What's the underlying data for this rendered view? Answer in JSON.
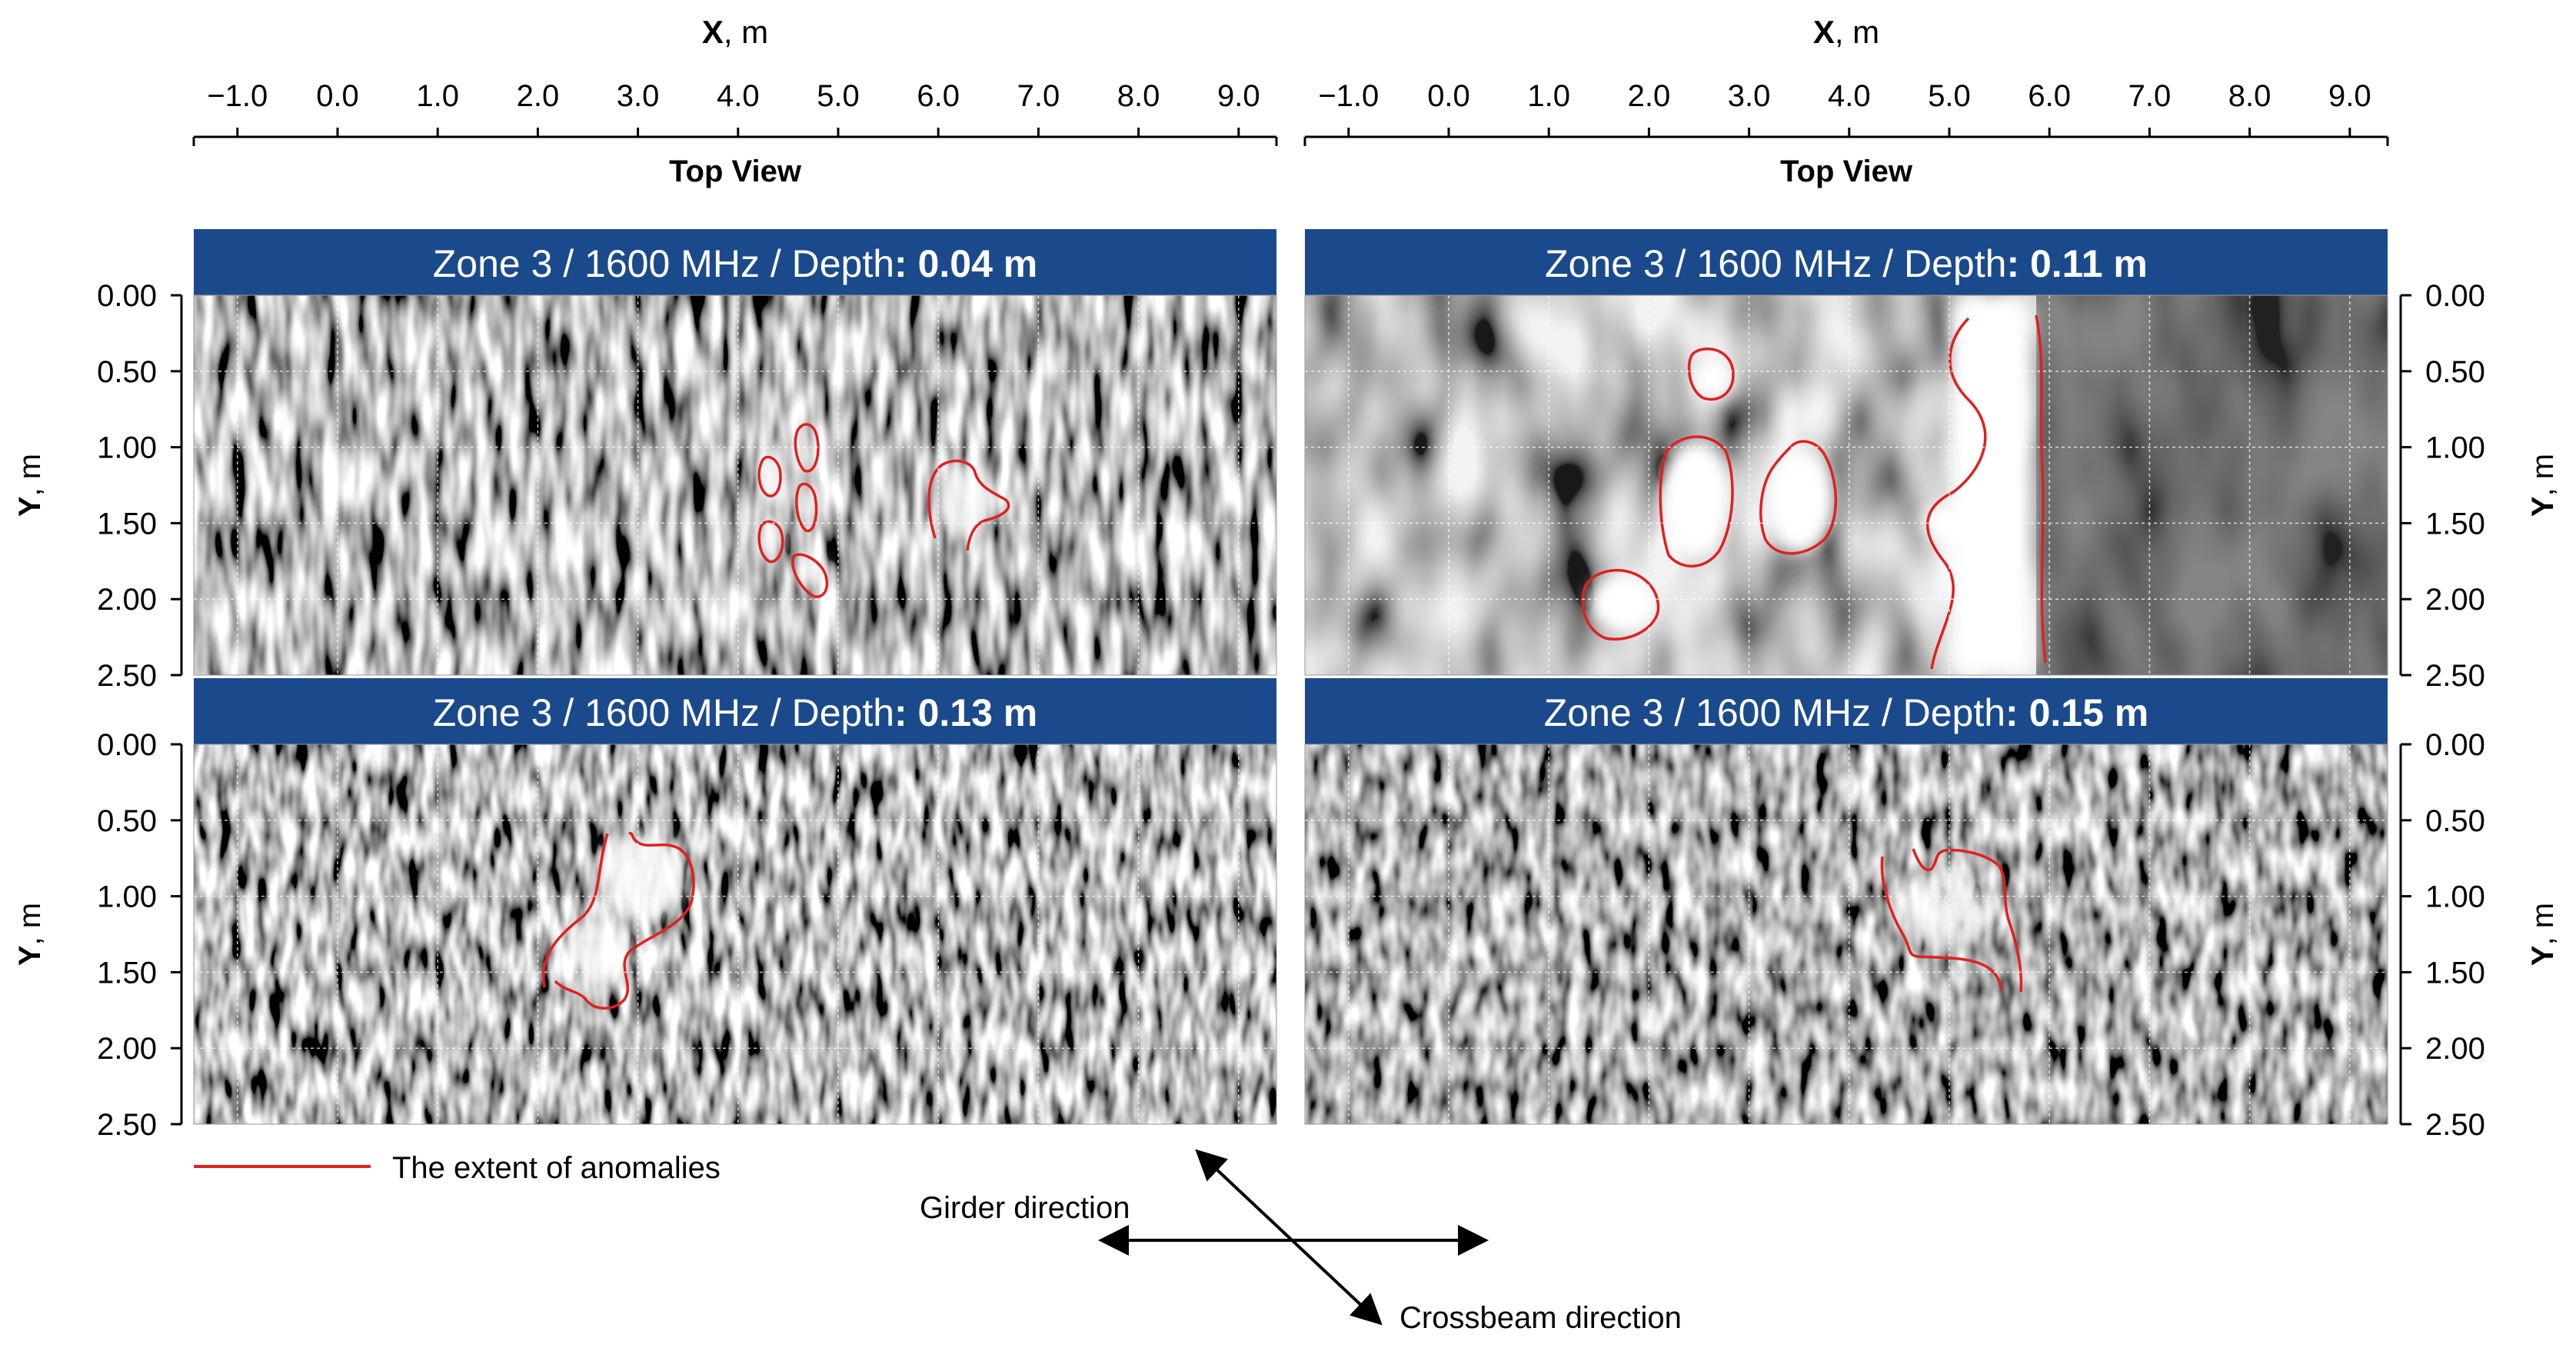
{
  "x_axis": {
    "title_bold": "X",
    "title_rest": ", m",
    "ticks": [
      "−1.0",
      "0.0",
      "1.0",
      "2.0",
      "3.0",
      "4.0",
      "5.0",
      "6.0",
      "7.0",
      "8.0",
      "9.0"
    ],
    "view_label": "Top View"
  },
  "y_axis": {
    "title_bold": "Y",
    "title_rest": ", m",
    "ticks": [
      "0.00",
      "0.50",
      "1.00",
      "1.50",
      "2.00",
      "2.50"
    ]
  },
  "panels": [
    {
      "title_prefix": "Zone 3 / 1600 MHz / Depth",
      "title_value": ": 0.04 m"
    },
    {
      "title_prefix": "Zone 3 / 1600 MHz / Depth",
      "title_value": ": 0.11 m"
    },
    {
      "title_prefix": "Zone 3 / 1600 MHz / Depth",
      "title_value": ": 0.13 m"
    },
    {
      "title_prefix": "Zone 3 / 1600 MHz / Depth",
      "title_value": ": 0.15 m"
    }
  ],
  "legend": {
    "label": "The extent of anomalies",
    "color": "#e02020"
  },
  "directions": {
    "girder": "Girder direction",
    "crossbeam": "Crossbeam direction"
  },
  "colors": {
    "title_bar": "#1b4a8c",
    "title_text": "#ffffff",
    "grid": "#ffffff"
  }
}
